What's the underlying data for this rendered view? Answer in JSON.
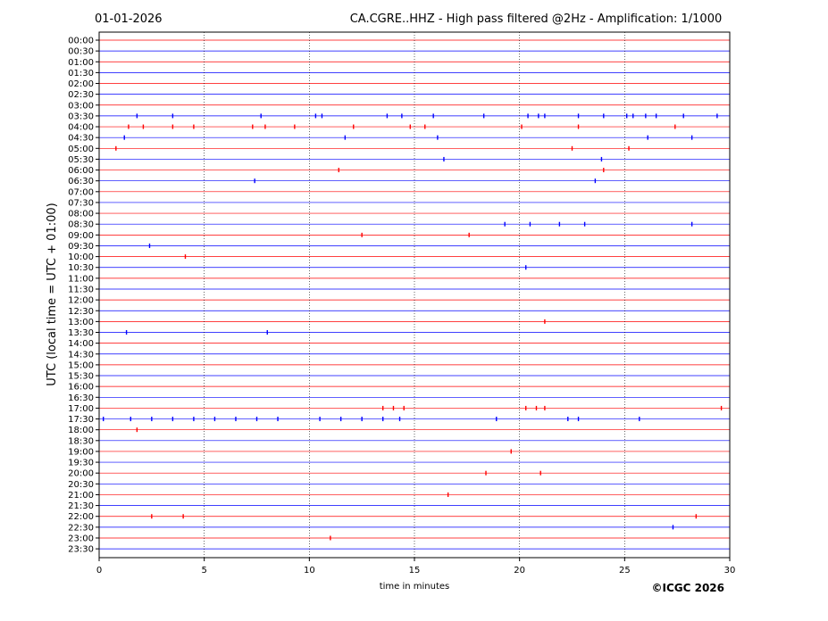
{
  "header": {
    "date": "01-01-2026",
    "title": "CA.CGRE..HHZ - High pass filtered @2Hz - Amplification: 1/1000"
  },
  "copyright": "©ICGC 2026",
  "colors": {
    "odd_trace": "#ff0000",
    "even_trace": "#0000ff",
    "grid": "#000000"
  },
  "chart_data": {
    "type": "line",
    "title": "CA.CGRE..HHZ - High pass filtered @2Hz - Amplification: 1/1000",
    "xlabel": "time in minutes",
    "ylabel": "UTC (local time = UTC + 01:00)",
    "xlim": [
      0,
      30
    ],
    "xticks": [
      0,
      5,
      10,
      15,
      20,
      25,
      30
    ],
    "vertical_gridlines_at": [
      5,
      10,
      15,
      20,
      25
    ],
    "grid_style": "dotted",
    "trace_colors_alternating": [
      "red",
      "blue"
    ],
    "rows": [
      "00:00",
      "00:30",
      "01:00",
      "01:30",
      "02:00",
      "02:30",
      "03:00",
      "03:30",
      "04:00",
      "04:30",
      "05:00",
      "05:30",
      "06:00",
      "06:30",
      "07:00",
      "07:30",
      "08:00",
      "08:30",
      "09:00",
      "09:30",
      "10:00",
      "10:30",
      "11:00",
      "11:30",
      "12:00",
      "12:30",
      "13:00",
      "13:30",
      "14:00",
      "14:30",
      "15:00",
      "15:30",
      "16:00",
      "16:30",
      "17:00",
      "17:30",
      "18:00",
      "18:30",
      "19:00",
      "19:30",
      "20:00",
      "20:30",
      "21:00",
      "21:30",
      "22:00",
      "22:30",
      "23:00",
      "23:30"
    ],
    "events": [
      {
        "row": "03:30",
        "minutes": [
          1.8,
          3.5,
          7.7,
          10.3,
          10.6,
          13.7,
          14.4,
          15.9,
          18.3,
          20.4,
          20.9,
          21.2,
          22.8,
          24.0,
          25.1,
          25.4,
          26.0,
          26.5,
          27.8,
          29.4
        ]
      },
      {
        "row": "04:00",
        "minutes": [
          1.4,
          2.1,
          3.5,
          4.5,
          7.3,
          7.9,
          9.3,
          12.1,
          14.8,
          15.5,
          20.1,
          22.8,
          27.4
        ]
      },
      {
        "row": "04:30",
        "minutes": [
          1.2,
          11.7,
          16.1,
          26.1,
          28.2
        ]
      },
      {
        "row": "05:00",
        "minutes": [
          0.8,
          22.5,
          25.2
        ]
      },
      {
        "row": "05:30",
        "minutes": [
          16.4,
          23.9
        ]
      },
      {
        "row": "06:00",
        "minutes": [
          11.4,
          24.0
        ]
      },
      {
        "row": "06:30",
        "minutes": [
          7.4,
          23.6
        ]
      },
      {
        "row": "08:30",
        "minutes": [
          19.3,
          20.5,
          21.9,
          23.1,
          28.2
        ]
      },
      {
        "row": "09:00",
        "minutes": [
          12.5,
          17.6
        ]
      },
      {
        "row": "09:30",
        "minutes": [
          2.4
        ]
      },
      {
        "row": "10:00",
        "minutes": [
          4.1
        ]
      },
      {
        "row": "10:30",
        "minutes": [
          20.3
        ]
      },
      {
        "row": "13:00",
        "minutes": [
          21.2
        ]
      },
      {
        "row": "13:30",
        "minutes": [
          1.3,
          8.0
        ]
      },
      {
        "row": "17:00",
        "minutes": [
          13.5,
          14.0,
          14.5,
          20.3,
          20.8,
          21.2,
          29.6
        ]
      },
      {
        "row": "17:30",
        "minutes": [
          0.2,
          1.5,
          2.5,
          3.5,
          4.5,
          5.5,
          6.5,
          7.5,
          8.5,
          10.5,
          11.5,
          12.5,
          13.5,
          14.3,
          18.9,
          22.3,
          22.8,
          25.7
        ]
      },
      {
        "row": "18:00",
        "minutes": [
          1.8
        ]
      },
      {
        "row": "19:00",
        "minutes": [
          19.6
        ]
      },
      {
        "row": "20:00",
        "minutes": [
          18.4,
          21.0
        ]
      },
      {
        "row": "21:00",
        "minutes": [
          16.6
        ]
      },
      {
        "row": "22:00",
        "minutes": [
          2.5,
          4.0,
          28.4
        ]
      },
      {
        "row": "22:30",
        "minutes": [
          27.3
        ]
      },
      {
        "row": "23:00",
        "minutes": [
          11.0
        ]
      }
    ]
  }
}
